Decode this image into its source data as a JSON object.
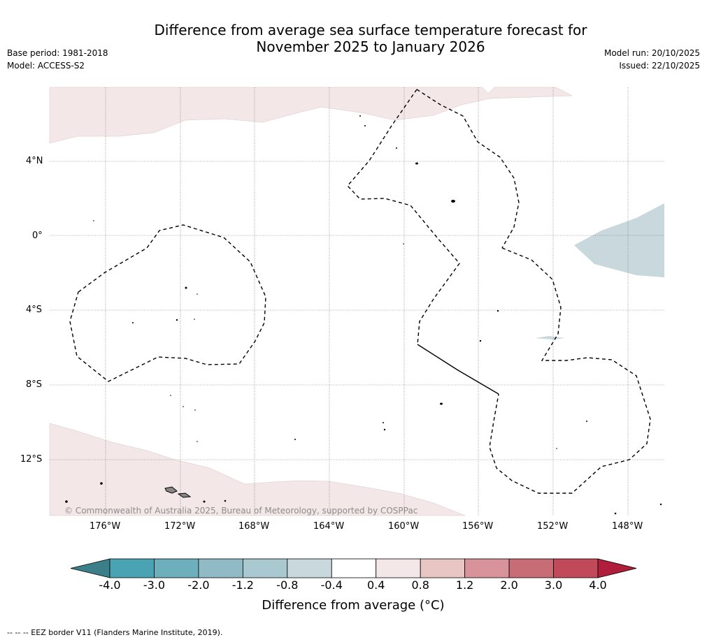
{
  "header": {
    "title_line1": "Difference from average sea surface temperature forecast for",
    "title_line2": "November 2025 to January 2026",
    "base_period": "Base period: 1981-2018",
    "model": "Model: ACCESS-S2",
    "model_run": "Model run: 20/10/2025",
    "issued": "Issued: 22/10/2025"
  },
  "map": {
    "lat_labels": [
      "4°N",
      "0°",
      "4°S",
      "8°S",
      "12°S"
    ],
    "lon_labels": [
      "176°W",
      "172°W",
      "168°W",
      "164°W",
      "160°W",
      "156°W",
      "152°W",
      "148°W"
    ],
    "copyright": "© Commonwealth of Australia 2025, Bureau of Meteorology, supported by COSPPac",
    "colors": {
      "warm_anomaly": "#f4e7e8",
      "cool_anomaly": "#c9d8dd",
      "ocean": "#ffffff"
    }
  },
  "colorbar": {
    "title": "Difference from average (°C)",
    "tick_labels": [
      "-4.0",
      "-3.0",
      "-2.0",
      "-1.2",
      "-0.8",
      "-0.4",
      "0.4",
      "0.8",
      "1.2",
      "2.0",
      "3.0",
      "4.0"
    ],
    "colors": [
      "#3c7f88",
      "#4aa3b3",
      "#6eafbe",
      "#90bac5",
      "#aac8cf",
      "#c9d8dd",
      "#ffffff",
      "#f4e7e8",
      "#e8c6c3",
      "#d89299",
      "#c86c76",
      "#c14a5a",
      "#b01e3b"
    ]
  },
  "footnote": "-- -- -- EEZ border V11 (Flanders Marine Institute, 2019)."
}
